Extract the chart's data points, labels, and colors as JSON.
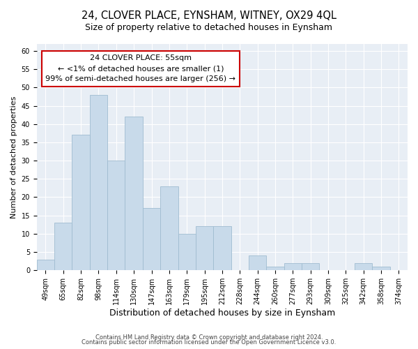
{
  "title": "24, CLOVER PLACE, EYNSHAM, WITNEY, OX29 4QL",
  "subtitle": "Size of property relative to detached houses in Eynsham",
  "xlabel": "Distribution of detached houses by size in Eynsham",
  "ylabel": "Number of detached properties",
  "bar_labels": [
    "49sqm",
    "65sqm",
    "82sqm",
    "98sqm",
    "114sqm",
    "130sqm",
    "147sqm",
    "163sqm",
    "179sqm",
    "195sqm",
    "212sqm",
    "228sqm",
    "244sqm",
    "260sqm",
    "277sqm",
    "293sqm",
    "309sqm",
    "325sqm",
    "342sqm",
    "358sqm",
    "374sqm"
  ],
  "bar_values": [
    3,
    13,
    37,
    48,
    30,
    42,
    17,
    23,
    10,
    12,
    12,
    0,
    4,
    1,
    2,
    2,
    0,
    0,
    2,
    1,
    0
  ],
  "bar_color": "#c8daea",
  "bar_edge_color": "#a0bcd0",
  "annotation_title": "24 CLOVER PLACE: 55sqm",
  "annotation_line1": "← <1% of detached houses are smaller (1)",
  "annotation_line2": "99% of semi-detached houses are larger (256) →",
  "annotation_box_color": "#ffffff",
  "annotation_box_edge_color": "#cc0000",
  "ylim": [
    0,
    62
  ],
  "yticks": [
    0,
    5,
    10,
    15,
    20,
    25,
    30,
    35,
    40,
    45,
    50,
    55,
    60
  ],
  "footer1": "Contains HM Land Registry data © Crown copyright and database right 2024.",
  "footer2": "Contains public sector information licensed under the Open Government Licence v3.0.",
  "bg_color": "#ffffff",
  "plot_bg_color": "#e8eef5",
  "grid_color": "#ffffff",
  "title_fontsize": 10.5,
  "subtitle_fontsize": 9,
  "xlabel_fontsize": 9,
  "ylabel_fontsize": 8,
  "tick_fontsize": 7,
  "annotation_fontsize": 8,
  "footer_fontsize": 6
}
